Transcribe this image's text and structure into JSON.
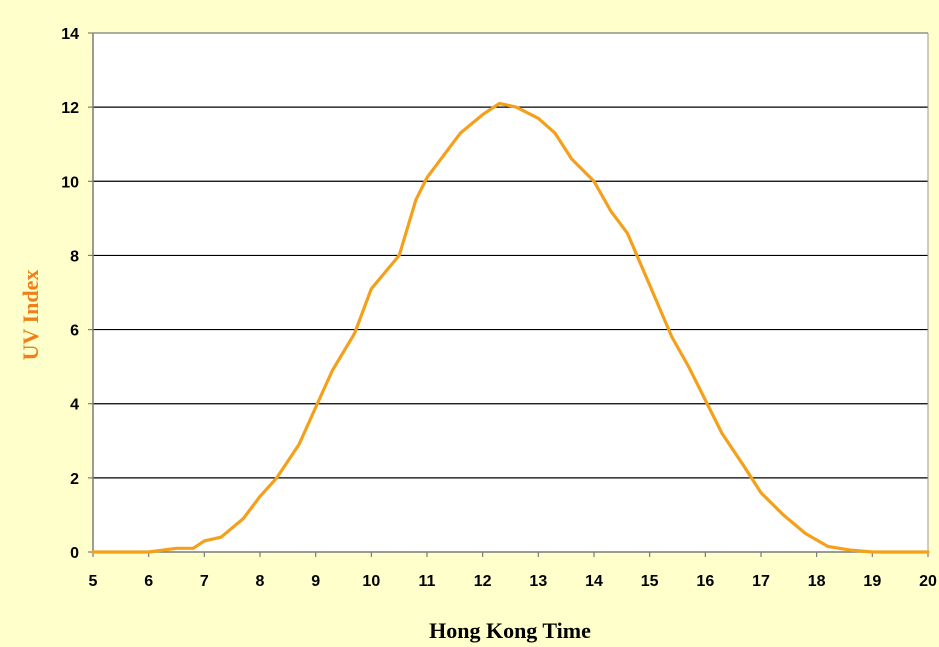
{
  "chart_data": {
    "type": "line",
    "title": "",
    "xlabel": "Hong Kong Time",
    "ylabel": "UV Index",
    "xlim": [
      5,
      20
    ],
    "ylim": [
      0,
      14
    ],
    "xticks": [
      "5",
      "6",
      "7",
      "8",
      "9",
      "10",
      "11",
      "12",
      "13",
      "14",
      "15",
      "16",
      "17",
      "18",
      "19",
      "20"
    ],
    "yticks": [
      "0",
      "2",
      "4",
      "6",
      "8",
      "10",
      "12",
      "14"
    ],
    "grid": "horizontal",
    "legend": "none",
    "colors": {
      "line": "#f5a01a",
      "ylabel": "#f07f1a",
      "background": "#ffffcc",
      "plot": "#ffffff",
      "grid": "#000000"
    },
    "series": [
      {
        "x": [
          5.0,
          6.0,
          6.5,
          6.8,
          7.0,
          7.3,
          7.7,
          8.0,
          8.3,
          8.7,
          9.0,
          9.3,
          9.7,
          10.0,
          10.5,
          10.8,
          11.0,
          11.3,
          11.6,
          12.0,
          12.3,
          12.6,
          13.0,
          13.3,
          13.6,
          14.0,
          14.3,
          14.6,
          15.0,
          15.4,
          15.7,
          16.0,
          16.3,
          16.7,
          17.0,
          17.4,
          17.8,
          18.2,
          18.6,
          19.0,
          19.5,
          20.0
        ],
        "y": [
          0.0,
          0.0,
          0.1,
          0.1,
          0.3,
          0.4,
          0.9,
          1.5,
          2.0,
          2.9,
          3.9,
          4.9,
          5.9,
          7.1,
          8.0,
          9.5,
          10.1,
          10.7,
          11.3,
          11.8,
          12.1,
          12.0,
          11.7,
          11.3,
          10.6,
          10.0,
          9.2,
          8.6,
          7.2,
          5.8,
          5.0,
          4.1,
          3.2,
          2.3,
          1.6,
          1.0,
          0.5,
          0.15,
          0.05,
          0.0,
          0.0,
          0.0
        ]
      }
    ]
  }
}
